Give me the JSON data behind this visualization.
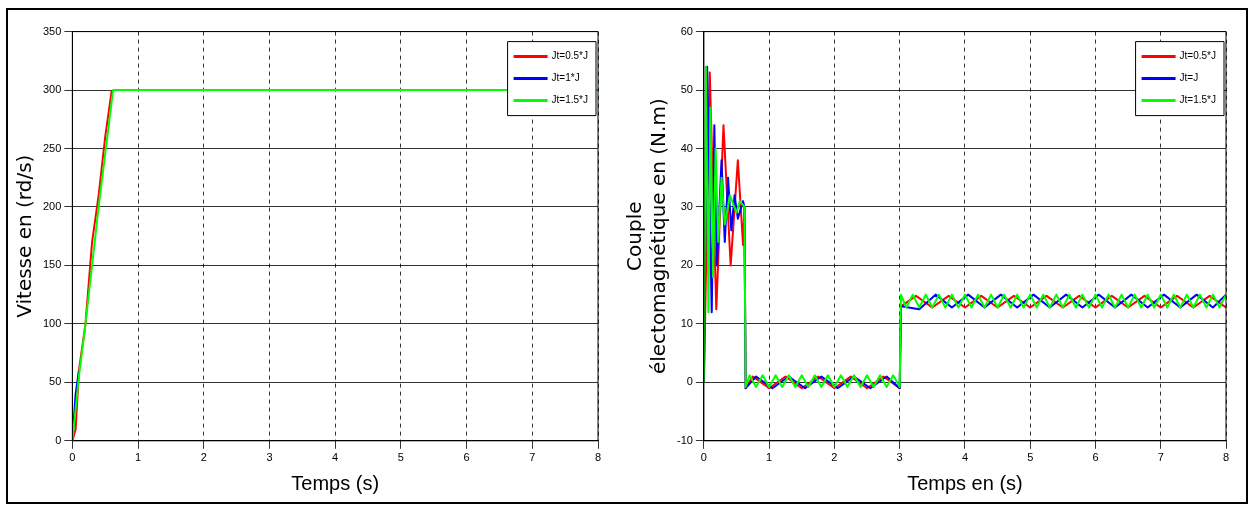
{
  "chart_data": [
    {
      "type": "line",
      "xlabel": "Temps (s)",
      "ylabel": "Vitesse en (rd/s)",
      "xlim": [
        0,
        8
      ],
      "xticks": [
        0,
        1,
        2,
        3,
        4,
        5,
        6,
        7,
        8
      ],
      "ylim": [
        0,
        350
      ],
      "yticks": [
        0,
        50,
        100,
        150,
        200,
        250,
        300,
        350
      ],
      "grid": true,
      "legend": "top right",
      "marker": "none",
      "series": [
        {
          "name": "Jt=0.5*J",
          "color": "#ff0000",
          "x": [
            0,
            0.05,
            0.1,
            0.2,
            0.3,
            0.4,
            0.5,
            0.6
          ],
          "values": [
            0,
            10,
            60,
            100,
            170,
            210,
            260,
            300
          ]
        },
        {
          "name": "Jt=1*J",
          "color": "#0000ff",
          "x": [
            0,
            0.05,
            0.1
          ],
          "values": [
            0,
            40,
            60
          ]
        },
        {
          "name": "Jt=1.5*J",
          "color": "#00ff00",
          "x": [
            0,
            0.1,
            0.2,
            0.4,
            0.62,
            8
          ],
          "values": [
            0,
            55,
            100,
            200,
            300,
            300
          ]
        }
      ]
    },
    {
      "type": "line",
      "xlabel": "Temps en (s)",
      "ylabel": "Couple\nélectomagnétique en (N.m)",
      "xlim": [
        0,
        8
      ],
      "xticks": [
        0,
        1,
        2,
        3,
        4,
        5,
        6,
        7,
        8
      ],
      "ylim": [
        -10,
        60
      ],
      "yticks": [
        -10,
        0,
        10,
        20,
        30,
        40,
        50,
        60
      ],
      "grid": true,
      "legend": "top right",
      "marker": "none",
      "series": [
        {
          "name": "Jt=0.5*J",
          "color": "#ff0000",
          "x": [
            0,
            0.09,
            0.19,
            0.3,
            0.41,
            0.52,
            0.6,
            0.62,
            0.64,
            0.75,
            1,
            1.25,
            1.5,
            1.75,
            2,
            2.25,
            2.5,
            2.75,
            3,
            3.02,
            3.25,
            3.5,
            3.75,
            4,
            4.25,
            4.5,
            4.75,
            5,
            5.25,
            5.5,
            5.75,
            6,
            6.25,
            6.5,
            6.75,
            7,
            7.25,
            7.5,
            7.75,
            8
          ],
          "values": [
            0,
            53,
            12.5,
            44,
            20,
            38,
            23.5,
            30,
            -1,
            1,
            -1,
            1,
            -1,
            1,
            -1,
            1,
            -1,
            1,
            -1,
            13,
            14.8,
            12.8,
            14.8,
            12.8,
            14.8,
            12.8,
            14.8,
            12.8,
            14.8,
            12.8,
            14.8,
            12.8,
            14.8,
            12.8,
            14.8,
            12.8,
            14.8,
            12.8,
            14.8,
            12.8
          ]
        },
        {
          "name": "Jt=J",
          "color": "#0000ff",
          "x": [
            0,
            0.05,
            0.12,
            0.16,
            0.2,
            0.27,
            0.32,
            0.37,
            0.42,
            0.47,
            0.52,
            0.6,
            0.62,
            0.64,
            0.8,
            1.05,
            1.3,
            1.55,
            1.8,
            2.05,
            2.3,
            2.55,
            2.8,
            3,
            3.02,
            3.3,
            3.55,
            3.8,
            4.05,
            4.3,
            4.55,
            4.8,
            5.05,
            5.3,
            5.55,
            5.8,
            6.05,
            6.3,
            6.55,
            6.8,
            7.05,
            7.3,
            7.55,
            7.8,
            8
          ],
          "values": [
            0,
            54,
            12,
            44,
            20,
            38,
            24,
            35,
            26,
            32,
            28,
            31,
            30,
            -1,
            1,
            -1,
            1,
            -1,
            1,
            -1,
            1,
            -1,
            1,
            -1,
            13,
            12.5,
            15,
            12.8,
            15,
            12.8,
            15,
            12.8,
            15,
            12.8,
            15,
            12.8,
            15,
            12.8,
            15,
            12.8,
            15,
            12.8,
            15,
            12.8,
            15
          ]
        },
        {
          "name": "Jt=1.5*J",
          "color": "#00ff00",
          "x": [
            0,
            0.03,
            0.07,
            0.1,
            0.14,
            0.18,
            0.22,
            0.27,
            0.32,
            0.4,
            0.5,
            0.55,
            0.62,
            0.64,
            0.7,
            0.8,
            0.9,
            1,
            1.1,
            1.2,
            1.3,
            1.4,
            1.5,
            1.6,
            1.7,
            1.8,
            1.9,
            2,
            2.1,
            2.2,
            2.3,
            2.4,
            2.5,
            2.6,
            2.7,
            2.8,
            2.9,
            3,
            3.02,
            3.1,
            3.2,
            3.3,
            3.4,
            3.5,
            3.6,
            3.7,
            3.8,
            3.9,
            4,
            4.1,
            4.2,
            4.3,
            4.4,
            4.5,
            4.6,
            4.7,
            4.8,
            4.9,
            5,
            5.1,
            5.2,
            5.3,
            5.4,
            5.5,
            5.6,
            5.7,
            5.8,
            5.9,
            6,
            6.1,
            6.2,
            6.3,
            6.4,
            6.5,
            6.6,
            6.7,
            6.8,
            6.9,
            7,
            7.1,
            7.2,
            7.3,
            7.4,
            7.5,
            7.6,
            7.7,
            7.8,
            7.9,
            8
          ],
          "values": [
            0,
            54,
            12,
            47,
            18,
            40,
            24,
            35,
            27,
            32,
            29,
            31,
            30,
            -0.8,
            1.2,
            -0.8,
            1.2,
            -0.8,
            1.2,
            -0.8,
            1.2,
            -0.8,
            1.2,
            -0.8,
            1.2,
            -0.8,
            1.2,
            -0.8,
            1.2,
            -0.8,
            1.2,
            -0.8,
            1.2,
            -0.8,
            1.2,
            -0.8,
            1.2,
            -0.8,
            15,
            12.8,
            15,
            12.8,
            15,
            12.8,
            15,
            12.8,
            15,
            12.8,
            15,
            12.8,
            15,
            12.8,
            15,
            12.8,
            15,
            12.8,
            15,
            12.8,
            15,
            12.8,
            15,
            12.8,
            15,
            12.8,
            15,
            12.8,
            15,
            12.8,
            15,
            12.8,
            15,
            12.8,
            15,
            12.8,
            15,
            12.8,
            15,
            12.8,
            15,
            12.8,
            15,
            12.8,
            15,
            12.8,
            15,
            12.8,
            15,
            12.8,
            15
          ]
        }
      ]
    }
  ]
}
